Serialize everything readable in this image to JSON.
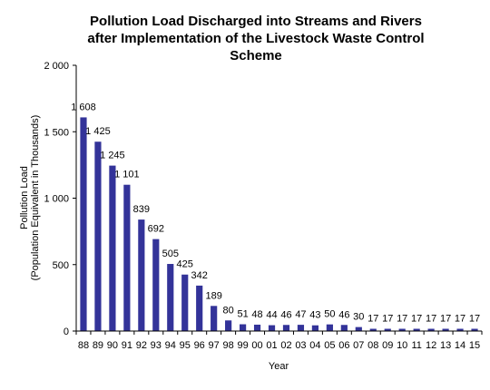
{
  "chart_data": {
    "type": "bar",
    "title_lines": [
      "Pollution Load Discharged into Streams and Rivers",
      "after Implementation of the Livestock Waste Control",
      "Scheme"
    ],
    "xlabel": "Year",
    "ylabel_lines": [
      "Pollution Load",
      "(Population Equivalent in Thousands)"
    ],
    "categories": [
      "88",
      "89",
      "90",
      "91",
      "92",
      "93",
      "94",
      "95",
      "96",
      "97",
      "98",
      "99",
      "00",
      "01",
      "02",
      "03",
      "04",
      "05",
      "06",
      "07",
      "08",
      "09",
      "10",
      "11",
      "12",
      "13",
      "14",
      "15"
    ],
    "values": [
      1608,
      1425,
      1245,
      1101,
      839,
      692,
      505,
      425,
      342,
      189,
      80,
      51,
      48,
      44,
      46,
      47,
      43,
      50,
      46,
      30,
      17,
      17,
      17,
      17,
      17,
      17,
      17,
      17
    ],
    "data_labels": [
      "1 608",
      "1 425",
      "1 245",
      "1 101",
      "839",
      "692",
      "505",
      "425",
      "342",
      "189",
      "80",
      "51",
      "48",
      "44",
      "46",
      "47",
      "43",
      "50",
      "46",
      "30",
      "17",
      "17",
      "17",
      "17",
      "17",
      "17",
      "17",
      "17"
    ],
    "y_ticks": [
      0,
      500,
      1000,
      1500,
      2000
    ],
    "y_tick_labels": [
      "0",
      "500",
      "1 000",
      "1 500",
      "2 000"
    ],
    "ylim": [
      0,
      2000
    ],
    "bar_color": "#333399",
    "grid": false,
    "legend": "none"
  }
}
